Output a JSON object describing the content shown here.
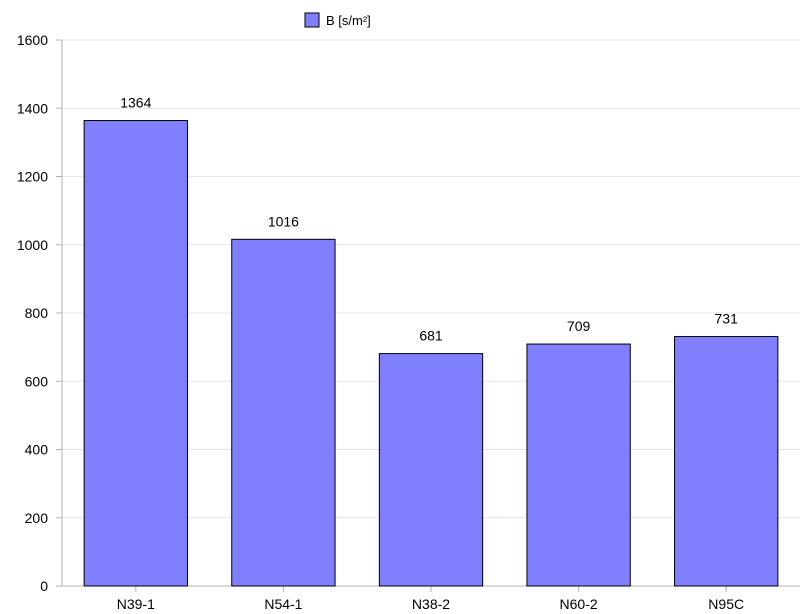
{
  "chart_data": {
    "type": "bar",
    "categories": [
      "N39-1",
      "N54-1",
      "N38-2",
      "N60-2",
      "N95C"
    ],
    "series": [
      {
        "name": "B [s/m²]",
        "values": [
          1364,
          1016,
          681,
          709,
          731
        ]
      }
    ],
    "data_labels": [
      "1364",
      "1016",
      "681",
      "709",
      "731"
    ],
    "yticks": [
      0,
      200,
      400,
      600,
      800,
      1000,
      1200,
      1400,
      1600
    ],
    "ylim": [
      0,
      1600
    ],
    "grid": true,
    "legend": "top-center",
    "colors": {
      "bar_fill": "#8080ff",
      "bar_stroke": "#000000",
      "grid": "#e6e6e6",
      "axis": "#b3b3b3"
    }
  }
}
